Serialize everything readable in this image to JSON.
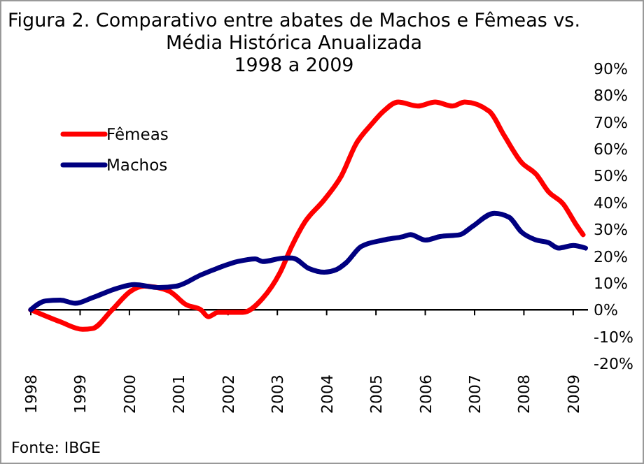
{
  "chart_data": {
    "type": "line",
    "title": "Figura 2. Comparativo entre abates de Machos e Fêmeas vs.\nMédia Histórica Anualizada\n1998 a 2009",
    "xlim": [
      1998,
      2009.3
    ],
    "xticks": [
      1998,
      1999,
      2000,
      2001,
      2002,
      2003,
      2004,
      2005,
      2006,
      2007,
      2008,
      2009
    ],
    "ylim": [
      -20,
      90
    ],
    "yticks": [
      {
        "value": -20,
        "label": "-20%"
      },
      {
        "value": -10,
        "label": "-10%"
      },
      {
        "value": 0,
        "label": "0%"
      },
      {
        "value": 10,
        "label": "10%"
      },
      {
        "value": 20,
        "label": "20%"
      },
      {
        "value": 30,
        "label": "30%"
      },
      {
        "value": 40,
        "label": "40%"
      },
      {
        "value": 50,
        "label": "50%"
      },
      {
        "value": 60,
        "label": "60%"
      },
      {
        "value": 70,
        "label": "70%"
      },
      {
        "value": 80,
        "label": "80%"
      },
      {
        "value": 90,
        "label": "90%"
      }
    ],
    "legend": "top left",
    "marker": "none",
    "line_style": "solid",
    "annotations": [
      "Fonte: IBGE"
    ],
    "series": [
      {
        "name": "Fêmeas",
        "color": "#ff0000",
        "x": [
          1998,
          1998.6,
          1999.05,
          1999.25,
          1999.65,
          2000.03,
          2000.3,
          2000.8,
          2001.15,
          2001.45,
          2001.6,
          2001.8,
          2002.3,
          2002.7,
          2003.05,
          2003.3,
          2003.55,
          2003.95,
          2004.3,
          2004.6,
          2004.9,
          2005.15,
          2005.45,
          2005.85,
          2006.2,
          2006.55,
          2006.8,
          2007.3,
          2007.6,
          2007.95,
          2008.25,
          2008.5,
          2008.8,
          2009.05,
          2009.2
        ],
        "values": [
          0,
          -4.5,
          -7.3,
          -7,
          0,
          7,
          8.8,
          7,
          1.9,
          0,
          -2.6,
          -1,
          -1,
          4.2,
          13.7,
          24,
          32.5,
          41,
          50,
          62,
          69,
          74,
          77.5,
          76,
          77.5,
          76,
          77.5,
          74,
          65,
          55,
          50.5,
          44,
          39.4,
          32,
          28
        ]
      },
      {
        "name": "Machos",
        "color": "#000080",
        "x": [
          1998,
          1998.3,
          1998.6,
          1998.9,
          1999.25,
          1999.75,
          2000.1,
          2000.6,
          2000.95,
          2001.45,
          2001.8,
          2002.2,
          2002.55,
          2002.7,
          2003.15,
          2003.3,
          2003.65,
          2003.95,
          2004.2,
          2004.4,
          2004.7,
          2005.15,
          2005.55,
          2005.7,
          2006,
          2006.3,
          2006.7,
          2006.95,
          2007.4,
          2007.7,
          2007.95,
          2008.25,
          2008.5,
          2008.7,
          2009,
          2009.25
        ],
        "values": [
          0,
          3.3,
          3.6,
          2.4,
          4.5,
          8,
          9.4,
          8.3,
          8.8,
          13,
          15.6,
          18,
          19,
          18,
          19.3,
          19.3,
          15.3,
          14,
          15,
          17.6,
          23.6,
          26,
          27.3,
          28,
          26,
          27.3,
          28,
          31,
          36,
          34.5,
          29,
          26,
          25,
          23,
          24,
          23
        ]
      }
    ]
  }
}
